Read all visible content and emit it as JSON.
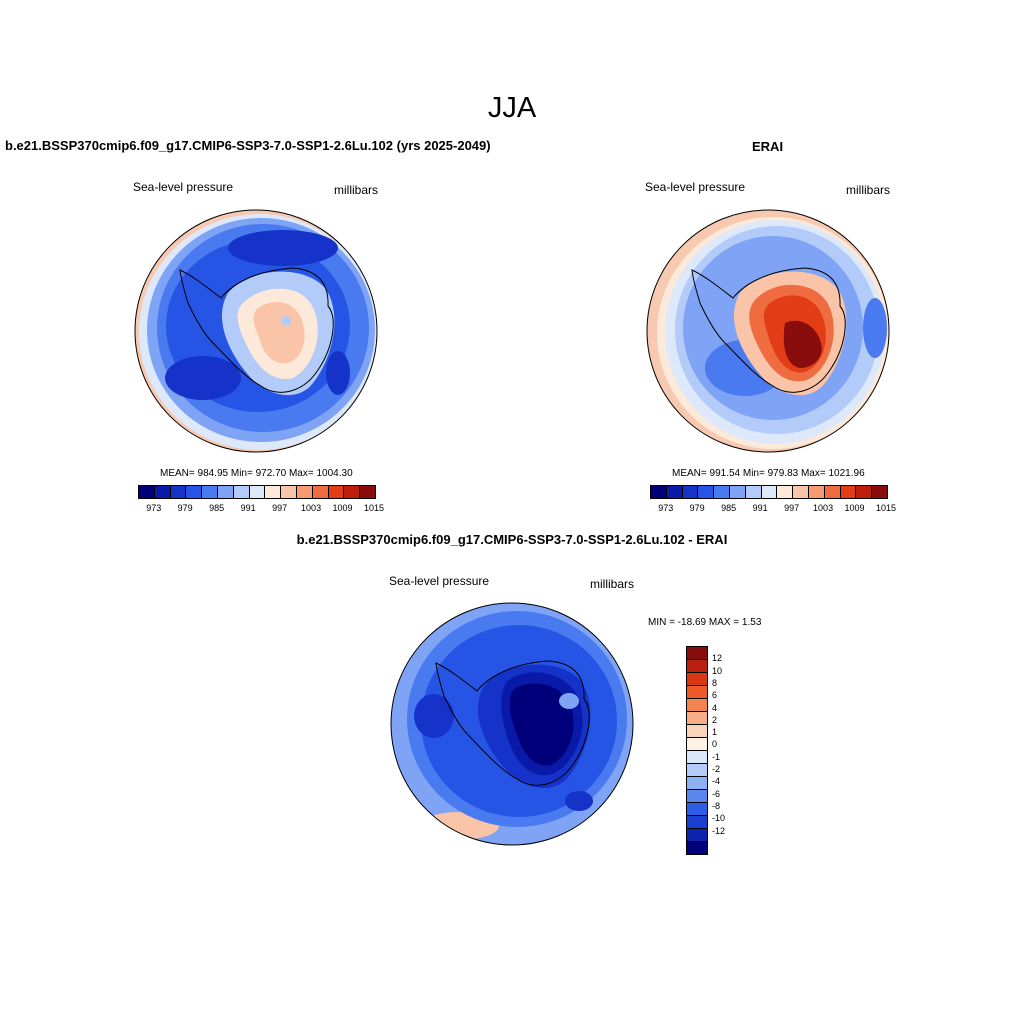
{
  "season": "JJA",
  "panels": [
    {
      "title": "b.e21.BSSP370cmip6.f09_g17.CMIP6-SSP3-7.0-SSP1-2.6Lu.102 (yrs 2025-2049)",
      "variable": "Sea-level pressure",
      "units": "millibars",
      "stats": "MEAN= 984.95   Min= 972.70   Max= 1004.30"
    },
    {
      "title": "ERAI",
      "variable": "Sea-level pressure",
      "units": "millibars",
      "stats": "MEAN= 991.54   Min= 979.83   Max= 1021.96"
    },
    {
      "title": "b.e21.BSSP370cmip6.f09_g17.CMIP6-SSP3-7.0-SSP1-2.6Lu.102 - ERAI",
      "variable": "Sea-level pressure",
      "units": "millibars",
      "stats": "MIN = -18.69 MAX =   1.53"
    }
  ],
  "colorbar_abs": {
    "ticks": [
      "973",
      "979",
      "985",
      "991",
      "997",
      "1003",
      "1009",
      "1015"
    ],
    "colors": [
      "#00007a",
      "#0a1aa8",
      "#1533c9",
      "#2655e6",
      "#4a7af0",
      "#7fa3f5",
      "#b3cbf8",
      "#dde9fb",
      "#fde9d9",
      "#fac4a8",
      "#f59a72",
      "#ef6b40",
      "#e23d17",
      "#c01e0a",
      "#8a0d0d"
    ]
  },
  "colorbar_diff": {
    "labels": [
      "12",
      "10",
      "8",
      "6",
      "4",
      "2",
      "1",
      "0",
      "-1",
      "-2",
      "-4",
      "-6",
      "-8",
      "-10",
      "-12"
    ],
    "colors": [
      "#8a0d0d",
      "#b8210f",
      "#d93712",
      "#ec5a28",
      "#f5834f",
      "#f8ad86",
      "#fbd3bb",
      "#fdf1e3",
      "#d9e7fb",
      "#b3cbf8",
      "#8eb0f5",
      "#5a87ee",
      "#2f5ee6",
      "#1a3ecf",
      "#0c23ad",
      "#00007a"
    ]
  }
}
